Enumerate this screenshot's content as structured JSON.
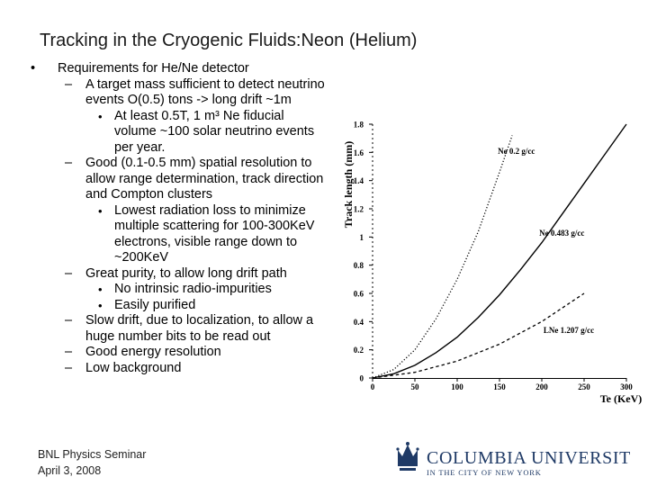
{
  "slide": {
    "title": "Tracking in the Cryogenic Fluids:Neon (Helium)",
    "footer": {
      "line1": "BNL Physics Seminar",
      "line2": "April 3, 2008"
    },
    "logo": {
      "name": "COLUMBIA UNIVERSITY",
      "tagline": "IN THE CITY OF NEW YORK",
      "icon": "crown-icon"
    }
  },
  "bullets": [
    {
      "level": 1,
      "marker": "•",
      "text": "Requirements for He/Ne detector"
    },
    {
      "level": 2,
      "marker": "–",
      "text": "A target mass sufficient to detect neutrino events O(0.5) tons -> long drift ~1m"
    },
    {
      "level": 3,
      "marker": "•",
      "text": "At least 0.5T, 1 m³ Ne fiducial volume ~100 solar neutrino events per year."
    },
    {
      "level": 2,
      "marker": "–",
      "text": "Good (0.1-0.5 mm) spatial resolution to allow range determination, track direction and Compton clusters"
    },
    {
      "level": 3,
      "marker": "•",
      "text": "Lowest radiation loss to minimize multiple scattering for 100-300KeV electrons, visible range down to ~200KeV"
    },
    {
      "level": 2,
      "marker": "–",
      "text": "Great purity, to allow long drift path"
    },
    {
      "level": 3,
      "marker": "•",
      "text": "No intrinsic radio-impurities"
    },
    {
      "level": 3,
      "marker": "•",
      "text": "Easily purified"
    },
    {
      "level": 2,
      "marker": "–",
      "text": "Slow drift, due to localization, to allow a huge number bits to be read out"
    },
    {
      "level": 2,
      "marker": "–",
      "text": "Good energy resolution"
    },
    {
      "level": 2,
      "marker": "–",
      "text": "Low background"
    }
  ],
  "chart_data": {
    "type": "line",
    "title": "",
    "xlabel": "Te (KeV)",
    "ylabel": "Track length (mm)",
    "xlim": [
      0,
      300
    ],
    "ylim": [
      0,
      1.8
    ],
    "xticks": [
      "0",
      "50",
      "100",
      "150",
      "200",
      "250",
      "300"
    ],
    "yticks": [
      "0",
      "0.2",
      "0.4",
      "0.6",
      "0.8",
      "1",
      "1.2",
      "1.4",
      "1.6",
      "1.8"
    ],
    "series": [
      {
        "name": "Ne 0.2 g/cc",
        "style": "dotted",
        "x": [
          0,
          25,
          50,
          75,
          100,
          125,
          150,
          165
        ],
        "y": [
          0,
          0.06,
          0.2,
          0.42,
          0.7,
          1.04,
          1.46,
          1.72
        ]
      },
      {
        "name": "Ne 0.483 g/cc",
        "style": "solid",
        "x": [
          0,
          25,
          50,
          75,
          100,
          125,
          150,
          175,
          200,
          225,
          250,
          275,
          300
        ],
        "y": [
          0,
          0.03,
          0.09,
          0.18,
          0.29,
          0.43,
          0.59,
          0.77,
          0.96,
          1.17,
          1.38,
          1.59,
          1.8
        ]
      },
      {
        "name": "LNe 1.207 g/cc",
        "style": "dashed",
        "x": [
          0,
          50,
          100,
          150,
          200,
          250
        ],
        "y": [
          0,
          0.04,
          0.12,
          0.24,
          0.4,
          0.6
        ]
      }
    ]
  }
}
